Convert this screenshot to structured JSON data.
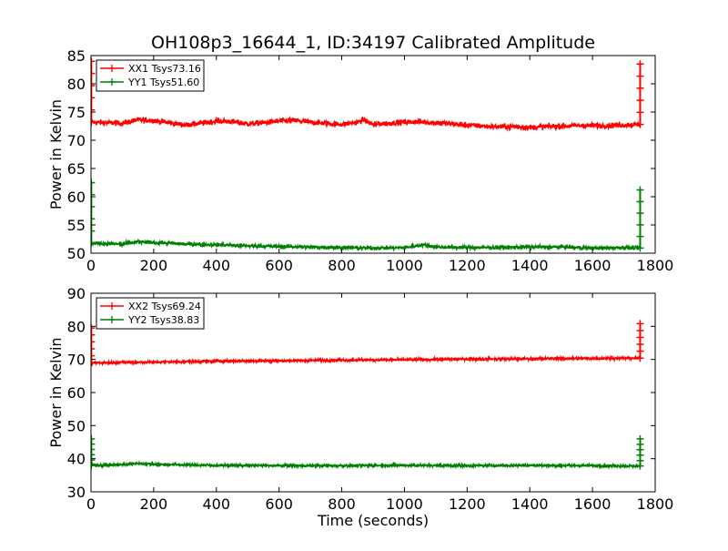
{
  "figure": {
    "title": "OH108p3_16644_1, ID:34197 Calibrated Amplitude"
  },
  "chart_data": [
    {
      "type": "line",
      "title": "OH108p3_16644_1, ID:34197 Calibrated Amplitude",
      "xlabel": "",
      "ylabel": "Power in Kelvin",
      "xlim": [
        0,
        1800
      ],
      "ylim": [
        50,
        85
      ],
      "x_ticks": [
        0,
        200,
        400,
        600,
        800,
        1000,
        1200,
        1400,
        1600,
        1800
      ],
      "y_ticks": [
        50,
        55,
        60,
        65,
        70,
        75,
        80,
        85
      ],
      "grid": false,
      "legend_position": "top-left",
      "series": [
        {
          "name": "XX1 Tsys73.16",
          "color": "#ff0000",
          "noise": 0.45,
          "x": [
            0,
            100,
            150,
            200,
            250,
            300,
            350,
            400,
            450,
            500,
            550,
            600,
            650,
            700,
            750,
            800,
            850,
            870,
            900,
            950,
            1000,
            1050,
            1100,
            1150,
            1200,
            1250,
            1300,
            1350,
            1400,
            1450,
            1500,
            1550,
            1600,
            1650,
            1700,
            1745
          ],
          "y": [
            73.2,
            73.0,
            73.6,
            73.5,
            73.1,
            72.7,
            73.0,
            73.4,
            73.3,
            72.9,
            73.1,
            73.4,
            73.5,
            73.2,
            73.0,
            72.8,
            73.2,
            73.6,
            72.8,
            73.0,
            73.2,
            73.3,
            73.1,
            72.9,
            72.7,
            72.5,
            72.4,
            72.4,
            72.3,
            72.4,
            72.5,
            72.6,
            72.6,
            72.6,
            72.7,
            72.8
          ],
          "spikes": [
            {
              "x": 1,
              "y": 84
            },
            {
              "x": 1752,
              "y": 83.5
            }
          ]
        },
        {
          "name": "YY1 Tsys51.60",
          "color": "#008000",
          "noise": 0.3,
          "x": [
            0,
            100,
            150,
            200,
            300,
            400,
            500,
            600,
            700,
            800,
            900,
            1000,
            1060,
            1100,
            1200,
            1300,
            1400,
            1500,
            1600,
            1700,
            1745
          ],
          "y": [
            51.8,
            51.6,
            52.0,
            51.9,
            51.6,
            51.5,
            51.3,
            51.2,
            51.1,
            51.0,
            50.9,
            51.0,
            51.5,
            51.1,
            51.0,
            51.0,
            51.1,
            51.1,
            50.9,
            51.0,
            50.9
          ],
          "spikes": [
            {
              "x": 1,
              "y": 62.5
            },
            {
              "x": 1752,
              "y": 61.2
            }
          ]
        }
      ]
    },
    {
      "type": "line",
      "title": "",
      "xlabel": "Time (seconds)",
      "ylabel": "Power in Kelvin",
      "xlim": [
        0,
        1800
      ],
      "ylim": [
        30,
        90
      ],
      "x_ticks": [
        0,
        200,
        400,
        600,
        800,
        1000,
        1200,
        1400,
        1600,
        1800
      ],
      "y_ticks": [
        30,
        40,
        50,
        60,
        70,
        80,
        90
      ],
      "grid": false,
      "legend_position": "top-left",
      "series": [
        {
          "name": "XX2 Tsys69.24",
          "color": "#ff0000",
          "noise": 0.35,
          "x": [
            0,
            200,
            400,
            600,
            800,
            1000,
            1200,
            1400,
            1600,
            1745
          ],
          "y": [
            69.0,
            69.2,
            69.5,
            69.6,
            69.8,
            69.9,
            70.1,
            70.2,
            70.3,
            70.4
          ],
          "spikes": [
            {
              "x": 1,
              "y": 79.5
            },
            {
              "x": 1752,
              "y": 80.8
            }
          ]
        },
        {
          "name": "YY2 Tsys38.83",
          "color": "#008000",
          "noise": 0.35,
          "x": [
            0,
            100,
            150,
            200,
            400,
            600,
            800,
            1000,
            1200,
            1400,
            1600,
            1745
          ],
          "y": [
            38.0,
            38.2,
            38.6,
            38.3,
            38.0,
            37.9,
            37.9,
            38.0,
            37.9,
            38.0,
            37.9,
            37.8
          ],
          "spikes": [
            {
              "x": 1,
              "y": 46
            },
            {
              "x": 1752,
              "y": 46
            }
          ]
        }
      ]
    }
  ]
}
